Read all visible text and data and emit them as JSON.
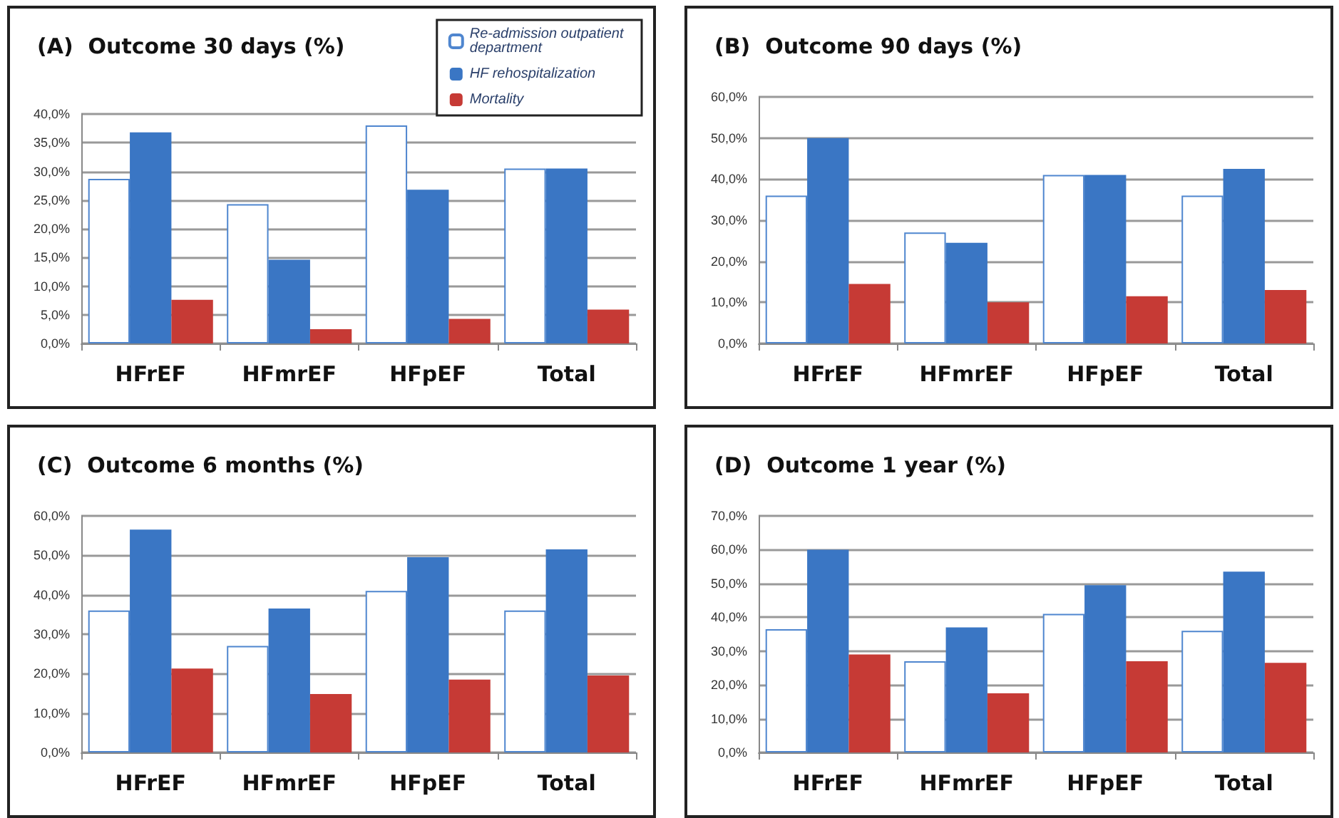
{
  "chart_data": [
    {
      "type": "bar",
      "title": "(A)  Outcome 30 days (%)",
      "categories": [
        "HFrEF",
        "HFmrEF",
        "HFpEF",
        "Total"
      ],
      "series": [
        {
          "name": "Re-admission outpatient department",
          "color": "#ffffff",
          "values": [
            28.7,
            24.3,
            38.0,
            30.5
          ]
        },
        {
          "name": "HF rehospitalization",
          "color": "#3a76c4",
          "values": [
            36.8,
            14.6,
            26.8,
            30.5
          ]
        },
        {
          "name": "Mortality",
          "color": "#c63a35",
          "values": [
            7.6,
            2.5,
            4.3,
            5.9
          ]
        }
      ],
      "ylim": [
        0,
        40
      ],
      "yticks": [
        {
          "value": 0,
          "label": "0,0%"
        },
        {
          "value": 5,
          "label": "5,0%"
        },
        {
          "value": 10,
          "label": "10,0%"
        },
        {
          "value": 15,
          "label": "15,0%"
        },
        {
          "value": 20,
          "label": "20,0%"
        },
        {
          "value": 25,
          "label": "25,0%"
        },
        {
          "value": 30,
          "label": "30,0%"
        },
        {
          "value": 35,
          "label": "35,0%"
        },
        {
          "value": 40,
          "label": "40,0%"
        }
      ],
      "grid": "y",
      "legend": "top right"
    },
    {
      "type": "bar",
      "title": "(B)  Outcome 90 days (%)",
      "categories": [
        "HFrEF",
        "HFmrEF",
        "HFpEF",
        "Total"
      ],
      "series": [
        {
          "color": "#ffffff",
          "values": [
            36,
            27,
            41,
            36
          ]
        },
        {
          "color": "#3a76c4",
          "values": [
            50,
            24.5,
            41,
            42.5
          ]
        },
        {
          "color": "#c63a35",
          "values": [
            14.5,
            10,
            11.5,
            13
          ]
        }
      ],
      "ylim": [
        0,
        60
      ],
      "yticks": [
        {
          "value": 0,
          "label": "0,0%"
        },
        {
          "value": 10,
          "label": "10,0%"
        },
        {
          "value": 20,
          "label": "20,0%"
        },
        {
          "value": 30,
          "label": "30,0%"
        },
        {
          "value": 40,
          "label": "40,0%"
        },
        {
          "value": 50,
          "label": "50,0%"
        },
        {
          "value": 60,
          "label": "60,0%"
        }
      ],
      "grid": "y"
    },
    {
      "type": "bar",
      "title": "(C)  Outcome 6 months (%)",
      "categories": [
        "HFrEF",
        "HFmrEF",
        "HFpEF",
        "Total"
      ],
      "series": [
        {
          "color": "#ffffff",
          "values": [
            36,
            27,
            41,
            36
          ]
        },
        {
          "color": "#3a76c4",
          "values": [
            56.5,
            36.5,
            49.5,
            51.5
          ]
        },
        {
          "color": "#c63a35",
          "values": [
            21.3,
            14.8,
            18.5,
            19.5
          ]
        }
      ],
      "ylim": [
        0,
        60
      ],
      "yticks": [
        {
          "value": 0,
          "label": "0,0%"
        },
        {
          "value": 10,
          "label": "10,0%"
        },
        {
          "value": 20,
          "label": "20,0%"
        },
        {
          "value": 30,
          "label": "30,0%"
        },
        {
          "value": 40,
          "label": "40,0%"
        },
        {
          "value": 50,
          "label": "50,0%"
        },
        {
          "value": 60,
          "label": "60,0%"
        }
      ],
      "grid": "y"
    },
    {
      "type": "bar",
      "title": "(D)  Outcome 1 year (%)",
      "categories": [
        "HFrEF",
        "HFmrEF",
        "HFpEF",
        "Total"
      ],
      "series": [
        {
          "color": "#ffffff",
          "values": [
            36.5,
            27,
            41,
            36
          ]
        },
        {
          "color": "#3a76c4",
          "values": [
            60,
            37,
            49.5,
            53.5
          ]
        },
        {
          "color": "#c63a35",
          "values": [
            29,
            17.5,
            27,
            26.5
          ]
        }
      ],
      "ylim": [
        0,
        70
      ],
      "yticks": [
        {
          "value": 0,
          "label": "0,0%"
        },
        {
          "value": 10,
          "label": "10,0%"
        },
        {
          "value": 20,
          "label": "20,0%"
        },
        {
          "value": 30,
          "label": "30,0%"
        },
        {
          "value": 40,
          "label": "40,0%"
        },
        {
          "value": 50,
          "label": "50,0%"
        },
        {
          "value": 60,
          "label": "60,0%"
        },
        {
          "value": 70,
          "label": "70,0%"
        }
      ],
      "grid": "y"
    }
  ]
}
